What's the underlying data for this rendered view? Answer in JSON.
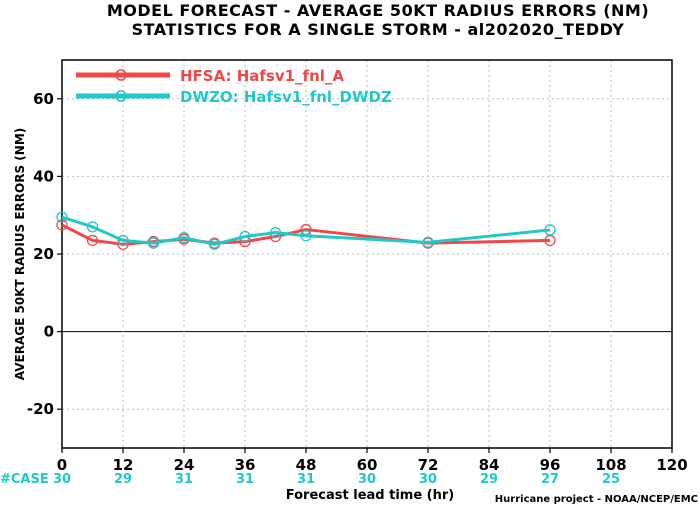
{
  "chart_data": {
    "type": "line",
    "title": "MODEL FORECAST - AVERAGE 50KT RADIUS ERRORS (NM)",
    "subtitle": "STATISTICS FOR A SINGLE STORM - al202020_TEDDY",
    "xlabel": "Forecast lead time (hr)",
    "ylabel": "AVERAGE 50KT RADIUS ERRORS (NM)",
    "xlim": [
      0,
      120
    ],
    "ylim": [
      -30,
      70
    ],
    "x_ticks": [
      0,
      12,
      24,
      36,
      48,
      60,
      72,
      84,
      96,
      108,
      120
    ],
    "y_ticks": [
      -20,
      0,
      20,
      40,
      60
    ],
    "grid": true,
    "legend_position": "top-left",
    "series": [
      {
        "name": "HFSA: Hafsv1_fnl_A",
        "color": "#f04848",
        "x": [
          0,
          6,
          12,
          18,
          24,
          30,
          36,
          42,
          48,
          72,
          96
        ],
        "y": [
          27.5,
          23.5,
          22.5,
          23.2,
          23.8,
          22.8,
          23.2,
          24.5,
          26.3,
          22.8,
          23.5
        ]
      },
      {
        "name": "DWZO: Hafsv1_fnl_DWDZ",
        "color": "#20c8c8",
        "x": [
          0,
          6,
          12,
          18,
          24,
          30,
          36,
          42,
          48,
          72,
          96
        ],
        "y": [
          29.5,
          27.0,
          23.5,
          22.8,
          24.2,
          22.5,
          24.5,
          25.5,
          24.7,
          23.0,
          26.2
        ]
      }
    ],
    "case_label": "#CASE",
    "case_counts": [
      {
        "x": 0,
        "label": "30"
      },
      {
        "x": 12,
        "label": "29"
      },
      {
        "x": 24,
        "label": "31"
      },
      {
        "x": 36,
        "label": "31"
      },
      {
        "x": 48,
        "label": "31"
      },
      {
        "x": 60,
        "label": "30"
      },
      {
        "x": 72,
        "label": "30"
      },
      {
        "x": 84,
        "label": "29"
      },
      {
        "x": 96,
        "label": "27"
      },
      {
        "x": 108,
        "label": "25"
      }
    ],
    "case_color": "#20c8c8",
    "credit": "Hurricane project - NOAA/NCEP/EMC"
  }
}
